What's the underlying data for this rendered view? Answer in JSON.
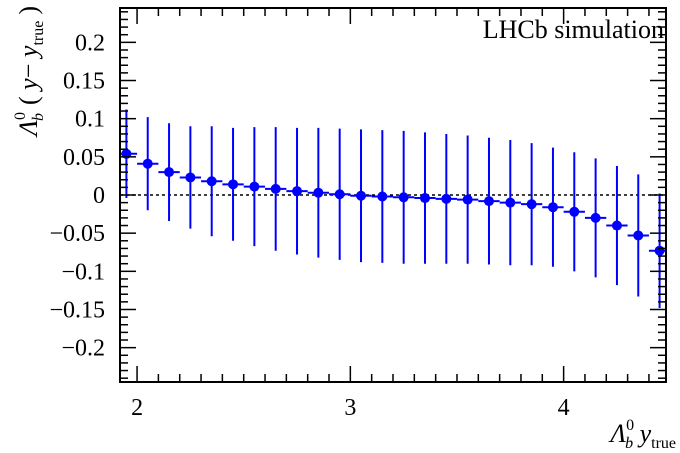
{
  "chart_data": {
    "type": "scatter",
    "title": "",
    "annotation": "LHCb simulation",
    "xlabel": {
      "main": "Λ",
      "sup": "0",
      "sub": "b",
      "var": " y",
      "var_sub": "true"
    },
    "ylabel": {
      "main": "Λ",
      "sup": "0",
      "sub": "b",
      "paren_open": "(",
      "var": " y",
      "minus": "−",
      "var2": " y",
      "var2_sub": "true",
      "paren_close": ")"
    },
    "xlim": [
      1.92,
      4.48
    ],
    "ylim": [
      -0.245,
      0.245
    ],
    "x_ticks": [
      {
        "value": 2,
        "label": "2"
      },
      {
        "value": 3,
        "label": "3"
      },
      {
        "value": 4,
        "label": "4"
      }
    ],
    "y_ticks": [
      {
        "value": 0.2,
        "label": "0.2"
      },
      {
        "value": 0.15,
        "label": "0.15"
      },
      {
        "value": 0.1,
        "label": "0.1"
      },
      {
        "value": 0.05,
        "label": "0.05"
      },
      {
        "value": 0,
        "label": "0"
      },
      {
        "value": -0.05,
        "label": "−0.05"
      },
      {
        "value": -0.1,
        "label": "−0.1"
      },
      {
        "value": -0.15,
        "label": "−0.15"
      },
      {
        "value": -0.2,
        "label": "−0.2"
      }
    ],
    "reference_line": 0,
    "marker_color": "#0000ff",
    "bin_halfwidth": 0.05,
    "series": [
      {
        "x": [
          1.95,
          2.05,
          2.15,
          2.25,
          2.35,
          2.45,
          2.55,
          2.65,
          2.75,
          2.85,
          2.95,
          3.05,
          3.15,
          3.25,
          3.35,
          3.45,
          3.55,
          3.65,
          3.75,
          3.85,
          3.95,
          4.05,
          4.15,
          4.25,
          4.35,
          4.45
        ],
        "y": [
          0.054,
          0.041,
          0.03,
          0.023,
          0.018,
          0.014,
          0.011,
          0.008,
          0.005,
          0.003,
          0.001,
          -0.001,
          -0.002,
          -0.003,
          -0.004,
          -0.005,
          -0.006,
          -0.008,
          -0.01,
          -0.012,
          -0.016,
          -0.022,
          -0.03,
          -0.04,
          -0.053,
          -0.073
        ],
        "err": [
          0.058,
          0.061,
          0.064,
          0.067,
          0.072,
          0.074,
          0.078,
          0.081,
          0.083,
          0.085,
          0.086,
          0.087,
          0.087,
          0.087,
          0.086,
          0.085,
          0.084,
          0.083,
          0.082,
          0.08,
          0.078,
          0.078,
          0.078,
          0.078,
          0.08,
          0.075
        ]
      }
    ]
  }
}
